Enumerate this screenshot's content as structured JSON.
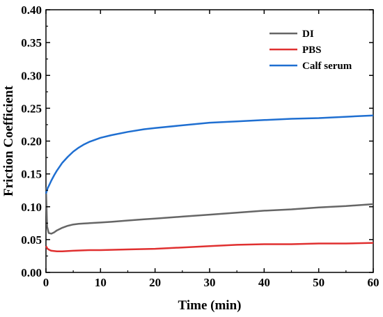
{
  "chart_data": {
    "type": "line",
    "xlabel": "Time (min)",
    "ylabel": "Friction Coefficient",
    "xlim": [
      0,
      60
    ],
    "ylim": [
      0,
      0.4
    ],
    "xticks": [
      "0",
      "10",
      "20",
      "30",
      "40",
      "50",
      "60"
    ],
    "yticks": [
      "0.00",
      "0.05",
      "0.10",
      "0.15",
      "0.20",
      "0.25",
      "0.30",
      "0.35",
      "0.40"
    ],
    "legend_position": "top-right",
    "grid": false,
    "series": [
      {
        "name": "DI",
        "color": "#666666",
        "x": [
          0,
          0.2,
          0.5,
          1,
          1.5,
          2,
          3,
          4,
          5,
          6,
          7,
          8,
          10,
          12,
          15,
          18,
          20,
          25,
          30,
          35,
          40,
          45,
          50,
          55,
          60
        ],
        "y": [
          0.13,
          0.07,
          0.06,
          0.059,
          0.061,
          0.064,
          0.068,
          0.071,
          0.073,
          0.074,
          0.0745,
          0.075,
          0.076,
          0.077,
          0.079,
          0.081,
          0.082,
          0.085,
          0.088,
          0.091,
          0.094,
          0.096,
          0.099,
          0.101,
          0.104
        ]
      },
      {
        "name": "PBS",
        "color": "#e03030",
        "x": [
          0,
          0.3,
          0.7,
          1,
          2,
          3,
          5,
          8,
          10,
          15,
          20,
          25,
          30,
          35,
          40,
          45,
          50,
          55,
          60
        ],
        "y": [
          0.04,
          0.036,
          0.034,
          0.033,
          0.032,
          0.032,
          0.033,
          0.034,
          0.034,
          0.035,
          0.036,
          0.038,
          0.04,
          0.042,
          0.043,
          0.043,
          0.044,
          0.044,
          0.045
        ]
      },
      {
        "name": "Calf serum",
        "color": "#1f6fd1",
        "x": [
          0,
          0.3,
          0.6,
          1,
          1.5,
          2,
          3,
          4,
          5,
          6,
          7,
          8,
          10,
          12,
          15,
          18,
          20,
          25,
          30,
          35,
          40,
          45,
          50,
          55,
          60
        ],
        "y": [
          0.12,
          0.128,
          0.133,
          0.14,
          0.148,
          0.155,
          0.167,
          0.176,
          0.184,
          0.19,
          0.195,
          0.199,
          0.205,
          0.209,
          0.214,
          0.218,
          0.22,
          0.224,
          0.228,
          0.23,
          0.232,
          0.234,
          0.235,
          0.237,
          0.239
        ]
      }
    ]
  }
}
